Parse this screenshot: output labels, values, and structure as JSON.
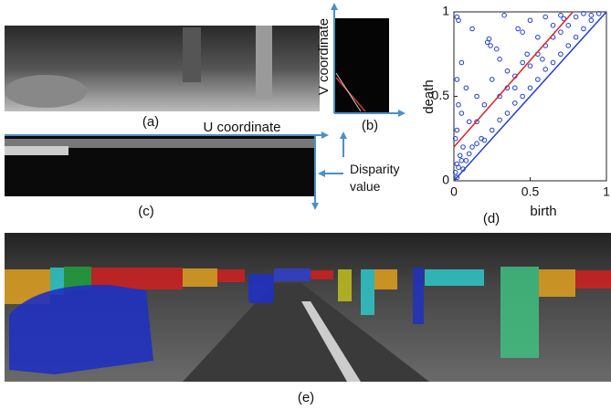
{
  "panels": {
    "a": "(a)",
    "b": "(b)",
    "c": "(c)",
    "d": "(d)",
    "e": "(e)"
  },
  "annotations": {
    "v_coordinate": "V coordinate",
    "u_coordinate": "U coordinate",
    "disparity": "Disparity value"
  },
  "chart_data": {
    "type": "scatter",
    "xlabel": "birth",
    "ylabel": "death",
    "color": "#1f3fd0",
    "xlim": [
      0,
      1
    ],
    "ylim": [
      0,
      1
    ],
    "xticks": [
      0,
      0.5,
      1
    ],
    "yticks": [
      0,
      0.5,
      1
    ],
    "points": [
      [
        0.01,
        0.05
      ],
      [
        0.02,
        0.1
      ],
      [
        0.03,
        0.08
      ],
      [
        0.02,
        0.3
      ],
      [
        0.04,
        0.15
      ],
      [
        0.05,
        0.12
      ],
      [
        0.06,
        0.2
      ],
      [
        0.08,
        0.12
      ],
      [
        0.1,
        0.16
      ],
      [
        0.12,
        0.2
      ],
      [
        0.15,
        0.22
      ],
      [
        0.18,
        0.25
      ],
      [
        0.2,
        0.24
      ],
      [
        0.25,
        0.3
      ],
      [
        0.3,
        0.36
      ],
      [
        0.35,
        0.4
      ],
      [
        0.4,
        0.46
      ],
      [
        0.45,
        0.5
      ],
      [
        0.5,
        0.55
      ],
      [
        0.55,
        0.6
      ],
      [
        0.6,
        0.66
      ],
      [
        0.65,
        0.7
      ],
      [
        0.7,
        0.75
      ],
      [
        0.75,
        0.8
      ],
      [
        0.8,
        0.85
      ],
      [
        0.85,
        0.9
      ],
      [
        0.9,
        0.95
      ],
      [
        0.05,
        0.4
      ],
      [
        0.1,
        0.35
      ],
      [
        0.15,
        0.5
      ],
      [
        0.2,
        0.45
      ],
      [
        0.25,
        0.6
      ],
      [
        0.3,
        0.5
      ],
      [
        0.35,
        0.55
      ],
      [
        0.4,
        0.62
      ],
      [
        0.45,
        0.7
      ],
      [
        0.5,
        0.68
      ],
      [
        0.55,
        0.75
      ],
      [
        0.6,
        0.8
      ],
      [
        0.65,
        0.85
      ],
      [
        0.7,
        0.88
      ],
      [
        0.75,
        0.92
      ],
      [
        0.8,
        0.97
      ],
      [
        0.02,
        0.97
      ],
      [
        0.03,
        0.95
      ],
      [
        0.22,
        0.82
      ],
      [
        0.24,
        0.8
      ],
      [
        0.23,
        0.84
      ],
      [
        0.28,
        0.78
      ],
      [
        0.3,
        0.72
      ],
      [
        0.42,
        0.9
      ],
      [
        0.45,
        0.88
      ],
      [
        0.5,
        0.95
      ],
      [
        0.6,
        0.97
      ],
      [
        0.7,
        0.98
      ],
      [
        0.02,
        0.6
      ],
      [
        0.05,
        0.7
      ],
      [
        0.12,
        0.9
      ],
      [
        0.08,
        0.55
      ],
      [
        0.35,
        0.65
      ],
      [
        0.55,
        0.85
      ],
      [
        0.65,
        0.92
      ],
      [
        0.03,
        0.45
      ],
      [
        0.01,
        0.25
      ],
      [
        0.15,
        0.35
      ],
      [
        0.4,
        0.55
      ],
      [
        0.33,
        0.98
      ],
      [
        0.48,
        0.75
      ],
      [
        0.58,
        0.72
      ],
      [
        0.72,
        0.96
      ],
      [
        0.85,
        0.99
      ],
      [
        0.9,
        0.98
      ],
      [
        0.95,
        0.99
      ],
      [
        0.02,
        0.02
      ],
      [
        0.06,
        0.07
      ]
    ],
    "fit_line": {
      "x": [
        0,
        0.78
      ],
      "y": [
        0.2,
        1
      ],
      "color": "#e02020"
    },
    "diagonal": {
      "x": [
        0,
        1
      ],
      "y": [
        0,
        1
      ],
      "color": "#1f3fd0"
    }
  }
}
